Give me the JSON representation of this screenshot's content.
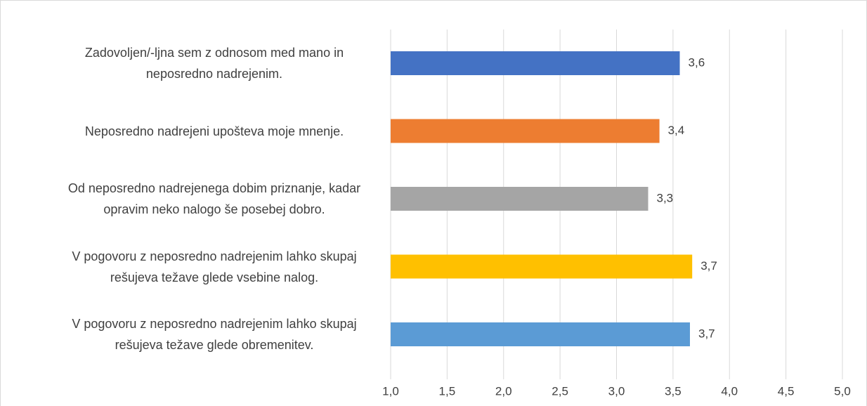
{
  "chart_data": {
    "type": "bar",
    "orientation": "horizontal",
    "categories": [
      "Zadovoljen/-ljna sem z odnosom med mano in neposredno nadrejenim.",
      "Neposredno nadrejeni upošteva moje mnenje.",
      "Od neposredno nadrejenega dobim priznanje, kadar opravim neko nalogo še posebej dobro.",
      "V pogovoru z neposredno nadrejenim lahko skupaj rešujeva težave glede vsebine nalog.",
      "V pogovoru z neposredno nadrejenim lahko skupaj rešujeva težave glede obremenitev."
    ],
    "values": [
      3.56,
      3.38,
      3.28,
      3.67,
      3.65
    ],
    "value_labels": [
      "3,6",
      "3,4",
      "3,3",
      "3,7",
      "3,7"
    ],
    "colors": [
      "#4472c4",
      "#ed7d31",
      "#a5a5a5",
      "#ffc000",
      "#5b9bd5"
    ],
    "xlim": [
      1.0,
      5.0
    ],
    "xticks": [
      {
        "value": 1.0,
        "label": "1,0"
      },
      {
        "value": 1.5,
        "label": "1,5"
      },
      {
        "value": 2.0,
        "label": "2,0"
      },
      {
        "value": 2.5,
        "label": "2,5"
      },
      {
        "value": 3.0,
        "label": "3,0"
      },
      {
        "value": 3.5,
        "label": "3,5"
      },
      {
        "value": 4.0,
        "label": "4,0"
      },
      {
        "value": 4.5,
        "label": "4,5"
      },
      {
        "value": 5.0,
        "label": "5,0"
      }
    ],
    "grid": true
  }
}
